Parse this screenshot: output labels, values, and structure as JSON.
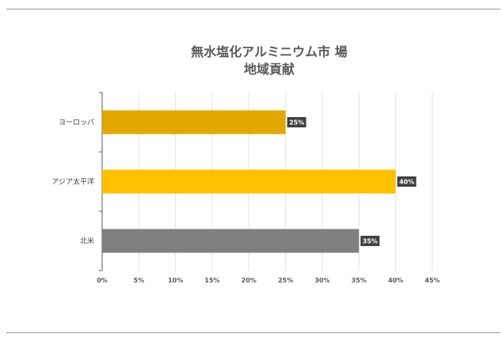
{
  "chart_data": {
    "type": "bar",
    "orientation": "horizontal",
    "title_lines": [
      "無水塩化アルミニウム市 場",
      "地域貢献"
    ],
    "categories": [
      "ヨーロッパ",
      "アジア太平洋",
      "北米"
    ],
    "values": [
      25,
      40,
      35
    ],
    "value_labels": [
      "25%",
      "40%",
      "35%"
    ],
    "colors": [
      "#E2A800",
      "#FFC000",
      "#7F7F7F"
    ],
    "xlim": [
      0,
      45
    ],
    "x_ticks": [
      0,
      5,
      10,
      15,
      20,
      25,
      30,
      35,
      40,
      45
    ],
    "x_tick_labels": [
      "0%",
      "5%",
      "10%",
      "15%",
      "20%",
      "25%",
      "30%",
      "35%",
      "40%",
      "45%"
    ],
    "grid": "vertical",
    "legend": "none",
    "data_label_background": "#404040"
  }
}
